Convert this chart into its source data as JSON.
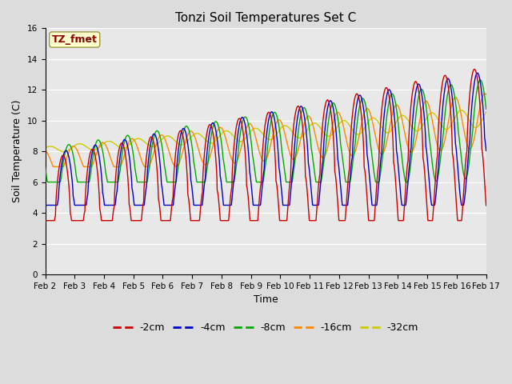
{
  "title": "Tonzi Soil Temperatures Set C",
  "xlabel": "Time",
  "ylabel": "Soil Temperature (C)",
  "ylim": [
    0,
    16
  ],
  "yticks": [
    0,
    2,
    4,
    6,
    8,
    10,
    12,
    14,
    16
  ],
  "annotation_text": "TZ_fmet",
  "annotation_color": "#8B0000",
  "annotation_bg": "#FFFFCC",
  "plot_bg_color": "#E8E8E8",
  "fig_bg_color": "#DCDCDC",
  "legend_entries": [
    "-2cm",
    "-4cm",
    "-8cm",
    "-16cm",
    "-32cm"
  ],
  "line_colors": [
    "#CC0000",
    "#0000CC",
    "#00AA00",
    "#FF8800",
    "#CCCC00"
  ],
  "title_fontsize": 11,
  "tick_fontsize": 7.5,
  "label_fontsize": 9,
  "legend_fontsize": 9
}
